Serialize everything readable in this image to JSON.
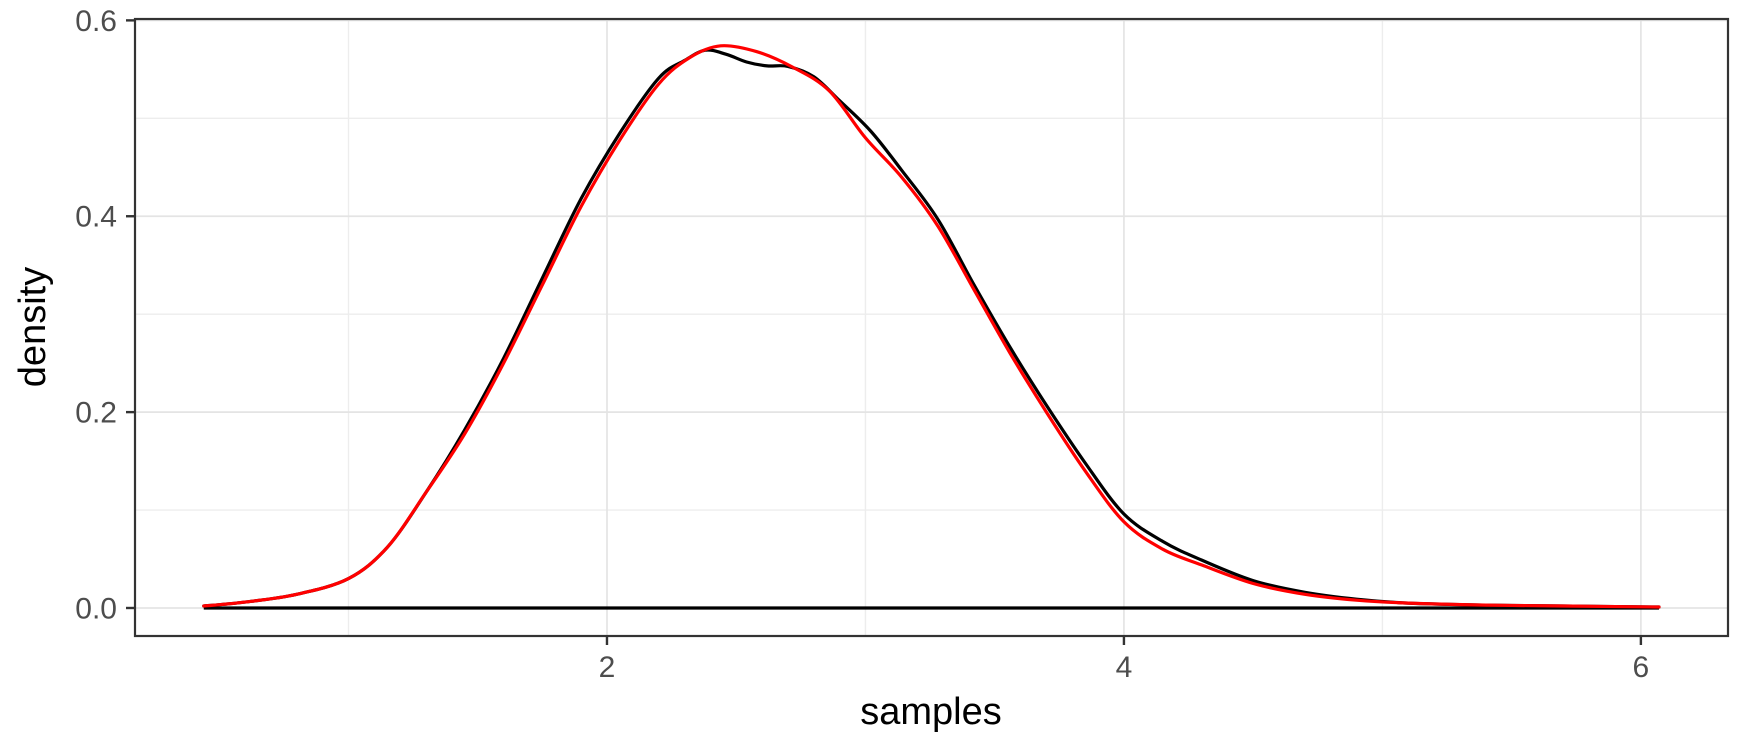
{
  "figure": {
    "background": "#FFFFFF"
  },
  "chart_data": {
    "type": "line",
    "title": "",
    "xlabel": "samples",
    "ylabel": "density",
    "xlim": [
      0.174,
      6.337
    ],
    "ylim": [
      -0.0286,
      0.6014
    ],
    "grid": true,
    "legend": "none",
    "x_ticks": [
      {
        "value": 2,
        "label": "2"
      },
      {
        "value": 4,
        "label": "4"
      },
      {
        "value": 6,
        "label": "6"
      }
    ],
    "y_ticks": [
      {
        "value": 0.0,
        "label": "0.0"
      },
      {
        "value": 0.2,
        "label": "0.2"
      },
      {
        "value": 0.4,
        "label": "0.4"
      },
      {
        "value": 0.6,
        "label": "0.6"
      }
    ],
    "x_minor": [
      1,
      3,
      5
    ],
    "y_minor": [
      0.1,
      0.3,
      0.5
    ],
    "colors": {
      "panel_border": "#333333",
      "grid_major": "#E4E4E4",
      "grid_minor": "#EDEDED",
      "tick_mark": "#333333",
      "tick_label": "#4D4D4D",
      "axis_title": "#000000",
      "kde_line": "#000000",
      "reference_line": "#FF0000"
    },
    "baseline": {
      "value": 0,
      "x_start": 0.44,
      "x_end": 6.07,
      "color": "#000000"
    },
    "series": [
      {
        "name": "sample-density-kde",
        "color": "#000000",
        "points": [
          [
            0.44,
            0.002
          ],
          [
            0.6,
            0.006
          ],
          [
            0.8,
            0.014
          ],
          [
            1.0,
            0.03
          ],
          [
            1.15,
            0.062
          ],
          [
            1.3,
            0.118
          ],
          [
            1.45,
            0.182
          ],
          [
            1.6,
            0.255
          ],
          [
            1.75,
            0.337
          ],
          [
            1.9,
            0.418
          ],
          [
            2.05,
            0.485
          ],
          [
            2.2,
            0.541
          ],
          [
            2.3,
            0.559
          ],
          [
            2.38,
            0.5695
          ],
          [
            2.46,
            0.5655
          ],
          [
            2.54,
            0.5575
          ],
          [
            2.62,
            0.5535
          ],
          [
            2.7,
            0.553
          ],
          [
            2.8,
            0.5425
          ],
          [
            2.9,
            0.518
          ],
          [
            3.02,
            0.487
          ],
          [
            3.14,
            0.447
          ],
          [
            3.28,
            0.397
          ],
          [
            3.42,
            0.33
          ],
          [
            3.56,
            0.266
          ],
          [
            3.7,
            0.207
          ],
          [
            3.85,
            0.148
          ],
          [
            4.0,
            0.096
          ],
          [
            4.15,
            0.068
          ],
          [
            4.3,
            0.049
          ],
          [
            4.5,
            0.028
          ],
          [
            4.7,
            0.016
          ],
          [
            4.9,
            0.009
          ],
          [
            5.1,
            0.005
          ],
          [
            5.4,
            0.003
          ],
          [
            5.7,
            0.002
          ],
          [
            6.07,
            0.001
          ]
        ]
      },
      {
        "name": "theoretical-density",
        "color": "#FF0000",
        "points": [
          [
            0.44,
            0.002
          ],
          [
            0.6,
            0.006
          ],
          [
            0.8,
            0.014
          ],
          [
            1.0,
            0.03
          ],
          [
            1.15,
            0.062
          ],
          [
            1.3,
            0.118
          ],
          [
            1.45,
            0.178
          ],
          [
            1.6,
            0.25
          ],
          [
            1.75,
            0.33
          ],
          [
            1.9,
            0.41
          ],
          [
            2.05,
            0.478
          ],
          [
            2.2,
            0.535
          ],
          [
            2.32,
            0.562
          ],
          [
            2.44,
            0.574
          ],
          [
            2.58,
            0.568
          ],
          [
            2.72,
            0.552
          ],
          [
            2.86,
            0.528
          ],
          [
            3.0,
            0.48
          ],
          [
            3.14,
            0.44
          ],
          [
            3.28,
            0.39
          ],
          [
            3.42,
            0.325
          ],
          [
            3.56,
            0.26
          ],
          [
            3.7,
            0.2
          ],
          [
            3.85,
            0.14
          ],
          [
            4.0,
            0.088
          ],
          [
            4.15,
            0.06
          ],
          [
            4.3,
            0.044
          ],
          [
            4.5,
            0.025
          ],
          [
            4.7,
            0.014
          ],
          [
            4.9,
            0.008
          ],
          [
            5.1,
            0.005
          ],
          [
            5.4,
            0.003
          ],
          [
            5.7,
            0.002
          ],
          [
            6.07,
            0.001
          ]
        ]
      }
    ]
  }
}
